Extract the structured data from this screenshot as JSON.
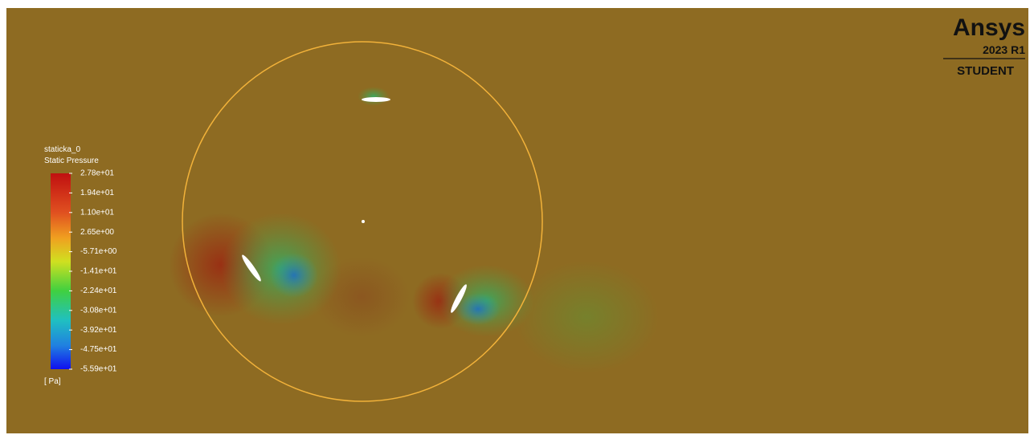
{
  "legend": {
    "case": "staticka_0",
    "variable": "Static Pressure",
    "ticks": [
      "2.78e+01",
      "1.94e+01",
      "1.10e+01",
      "2.65e+00",
      "-5.71e+00",
      "-1.41e+01",
      "-2.24e+01",
      "-3.08e+01",
      "-3.92e+01",
      "-4.75e+01",
      "-5.59e+01"
    ],
    "unit": "[ Pa]"
  },
  "logo": {
    "brand": "Ansys",
    "version": "2023 R1",
    "edition": "STUDENT"
  }
}
